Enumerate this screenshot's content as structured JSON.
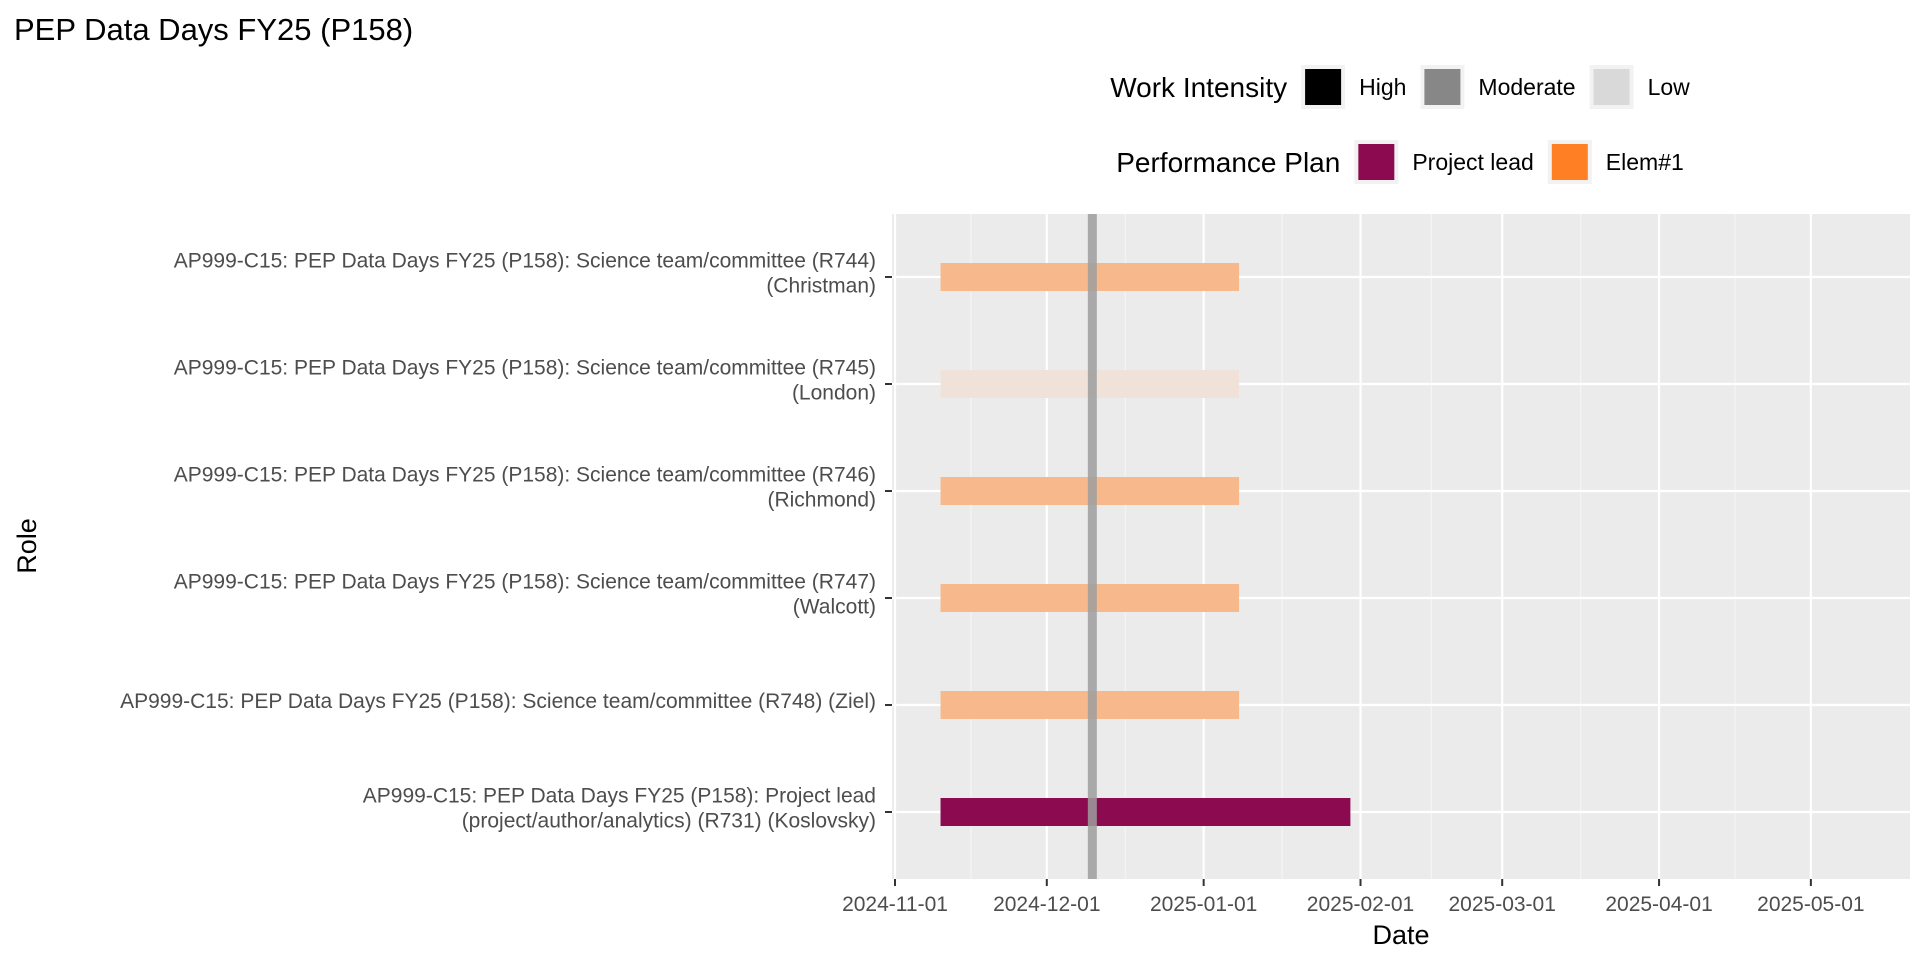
{
  "chart_data": {
    "type": "bar",
    "orientation": "horizontal-timeline",
    "title": "PEP Data Days FY25 (P158)",
    "xlabel": "Date",
    "ylabel": "Role",
    "xlim": [
      "2024-11-01",
      "2025-05-20"
    ],
    "x_ticks": [
      "2024-11-01",
      "2024-12-01",
      "2025-01-01",
      "2025-02-01",
      "2025-03-01",
      "2025-04-01",
      "2025-05-01"
    ],
    "grid": true,
    "reference_line": {
      "date": "2024-12-10",
      "color": "#9e9e9e"
    },
    "legends": [
      {
        "title": "Work Intensity",
        "position": "top",
        "items": [
          {
            "label": "High",
            "color": "#000000"
          },
          {
            "label": "Moderate",
            "color": "#878787"
          },
          {
            "label": "Low",
            "color": "#d9d9d9"
          }
        ]
      },
      {
        "title": "Performance Plan",
        "position": "top",
        "items": [
          {
            "label": "Project lead",
            "color": "#8b0a50"
          },
          {
            "label": "Elem#1",
            "color": "#ff7f24"
          }
        ]
      }
    ],
    "bars": [
      {
        "label_lines": [
          "AP999-C15: PEP Data Days FY25 (P158): Science team/committee (R744)",
          "(Christman)"
        ],
        "start": "2024-11-10",
        "end": "2025-01-08",
        "plan": "Elem#1",
        "intensity": "Moderate",
        "color": "#f7b98c"
      },
      {
        "label_lines": [
          "AP999-C15: PEP Data Days FY25 (P158): Science team/committee (R745)",
          "(London)"
        ],
        "start": "2024-11-10",
        "end": "2025-01-08",
        "plan": "Elem#1",
        "intensity": "Low",
        "color": "#f0e2d8"
      },
      {
        "label_lines": [
          "AP999-C15: PEP Data Days FY25 (P158): Science team/committee (R746)",
          "(Richmond)"
        ],
        "start": "2024-11-10",
        "end": "2025-01-08",
        "plan": "Elem#1",
        "intensity": "Moderate",
        "color": "#f7b98c"
      },
      {
        "label_lines": [
          "AP999-C15: PEP Data Days FY25 (P158): Science team/committee (R747)",
          "(Walcott)"
        ],
        "start": "2024-11-10",
        "end": "2025-01-08",
        "plan": "Elem#1",
        "intensity": "Moderate",
        "color": "#f7b98c"
      },
      {
        "label_lines": [
          "AP999-C15: PEP Data Days FY25 (P158): Science team/committee (R748) (Ziel)"
        ],
        "start": "2024-11-10",
        "end": "2025-01-08",
        "plan": "Elem#1",
        "intensity": "Moderate",
        "color": "#f7b98c"
      },
      {
        "label_lines": [
          "AP999-C15: PEP Data Days FY25 (P158): Project lead",
          "(project/author/analytics) (R731) (Koslovsky)"
        ],
        "start": "2024-11-10",
        "end": "2025-01-30",
        "plan": "Project lead",
        "intensity": "High",
        "color": "#8b0a50"
      }
    ]
  }
}
